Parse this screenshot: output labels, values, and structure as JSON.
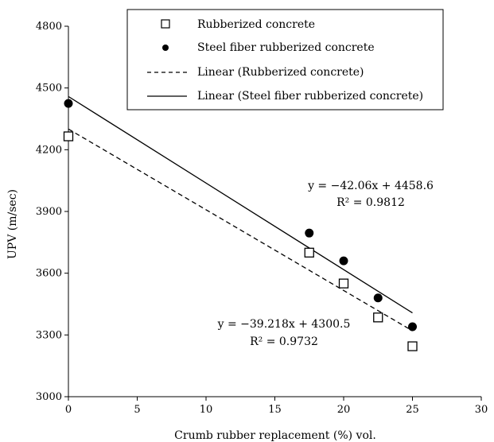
{
  "chart_data": {
    "type": "scatter",
    "xlabel": "Crumb rubber replacement (%) vol.",
    "ylabel": "UPV (m/sec)",
    "xlim": [
      0,
      30
    ],
    "ylim": [
      3000,
      4800
    ],
    "x_ticks": [
      "0",
      "5",
      "10",
      "15",
      "20",
      "25",
      "30"
    ],
    "y_ticks": [
      "3000",
      "3300",
      "3600",
      "3900",
      "4200",
      "4500",
      "4800"
    ],
    "grid": false,
    "legend_position": "top-right",
    "series": [
      {
        "name": "Rubberized concrete",
        "marker": "open-square",
        "points": [
          [
            0,
            4265
          ],
          [
            17.5,
            3700
          ],
          [
            20,
            3550
          ],
          [
            22.5,
            3385
          ],
          [
            25,
            3245
          ]
        ]
      },
      {
        "name": "Steel fiber rubberized concrete",
        "marker": "filled-circle",
        "points": [
          [
            0,
            4425
          ],
          [
            17.5,
            3795
          ],
          [
            20,
            3660
          ],
          [
            22.5,
            3480
          ],
          [
            25,
            3340
          ]
        ]
      }
    ],
    "trendlines": [
      {
        "name": "Linear (Rubberized concrete)",
        "style": "dashed",
        "slope": -39.218,
        "intercept": 4300.5,
        "x_range": [
          0,
          25
        ],
        "equation": "y = −39.218x + 4300.5",
        "r2": "R² = 0.9732"
      },
      {
        "name": "Linear (Steel fiber rubberized concrete)",
        "style": "solid",
        "slope": -42.06,
        "intercept": 4458.6,
        "x_range": [
          0,
          25
        ],
        "equation": "y = −42.06x + 4458.6",
        "r2": "R² = 0.9812"
      }
    ]
  }
}
